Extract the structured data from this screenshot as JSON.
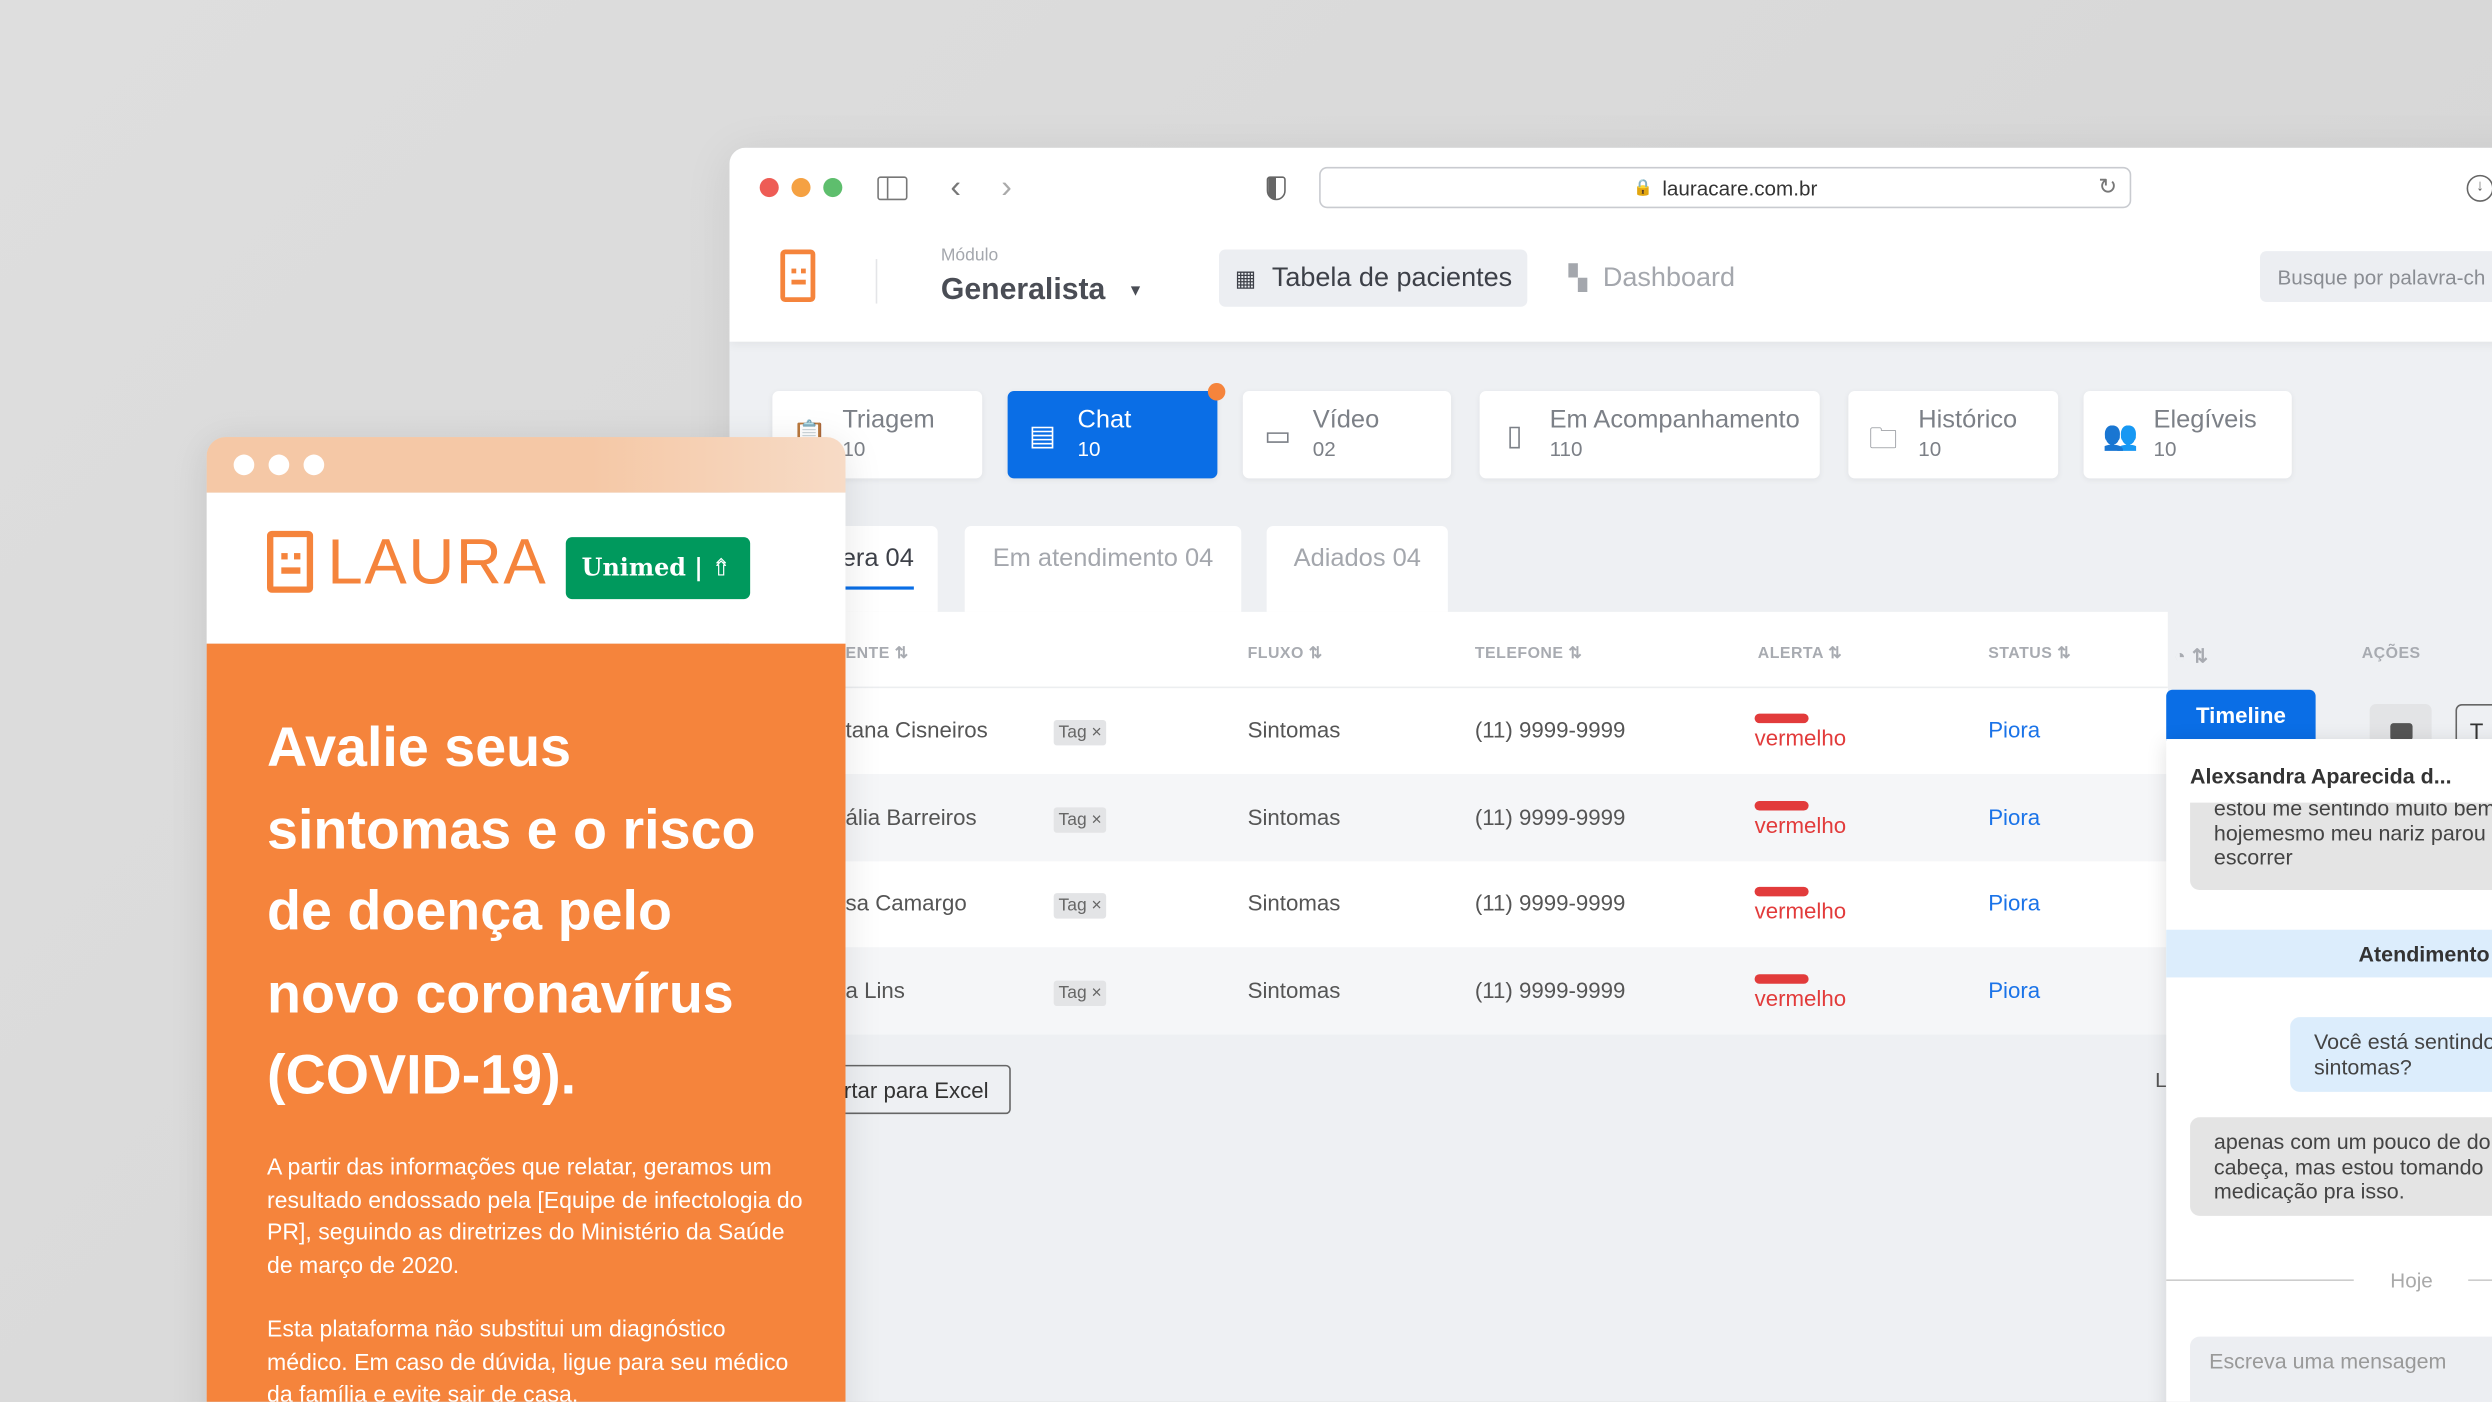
{
  "browser": {
    "url": "lauracare.com.br",
    "colors": {
      "close": "#ee5c55",
      "minimize": "#f5a142",
      "maximize": "#5ebe6d"
    }
  },
  "header": {
    "module_label": "Módulo",
    "module_value": "Generalista",
    "tabs": [
      {
        "label": "Tabela de pacientes",
        "active": true
      },
      {
        "label": "Dashboard",
        "active": false
      }
    ],
    "search_placeholder": "Busque por palavra-ch"
  },
  "categories": [
    {
      "label": "Triagem",
      "count": "10",
      "icon": "clipboard-icon"
    },
    {
      "label": "Chat",
      "count": "10",
      "icon": "chat-clipboard-icon",
      "active": true,
      "badge": true
    },
    {
      "label": "Vídeo",
      "count": "02",
      "icon": "video-icon"
    },
    {
      "label": "Em Acompanhamento",
      "count": "110",
      "icon": "laura-icon"
    },
    {
      "label": "Histórico",
      "count": "10",
      "icon": "folder-icon"
    },
    {
      "label": "Elegíveis",
      "count": "10",
      "icon": "users-icon"
    }
  ],
  "subtabs": [
    "era 04",
    "Em atendimento 04",
    "Adiados 04"
  ],
  "table": {
    "headers": {
      "paciente": "ENTE",
      "fluxo": "FLUXO",
      "telefone": "TELEFONE",
      "alerta": "ALERTA",
      "status": "STATUS",
      "acoes": "AÇÕES"
    },
    "rows": [
      {
        "name": "tana Cisneiros",
        "tag": "Tag",
        "fluxo": "Sintomas",
        "telefone": "(11) 9999-9999",
        "alerta": "vermelho",
        "status": "Piora"
      },
      {
        "name": "ália Barreiros",
        "tag": "Tag",
        "fluxo": "Sintomas",
        "telefone": "(11) 9999-9999",
        "alerta": "vermelho",
        "status": "Piora"
      },
      {
        "name": "sa Camargo",
        "tag": "Tag",
        "fluxo": "Sintomas",
        "telefone": "(11) 9999-9999",
        "alerta": "vermelho",
        "status": "Piora"
      },
      {
        "name": "a Lins",
        "tag": "Tag",
        "fluxo": "Sintomas",
        "telefone": "(11) 9999-9999",
        "alerta": "vermelho",
        "status": "Piora"
      }
    ],
    "export_label": "rtar para Excel",
    "partial_label": "L",
    "action_button_label": "T"
  },
  "chat": {
    "timeline_label": "Timeline",
    "patient_name": "Alexsandra Aparecida d...",
    "messages": [
      {
        "from": "patient",
        "text": "estou me sentindo muito bem hojemesmo meu nariz parou de escorrer"
      },
      {
        "from": "system",
        "text": "Atendimento"
      },
      {
        "from": "agent",
        "text": "Você está sentindo sintomas?"
      },
      {
        "from": "patient",
        "text": "apenas com um pouco de dor de cabeça, mas estou tomando medicação pra isso."
      }
    ],
    "divider": "Hoje",
    "input_placeholder": "Escreva uma mensagem"
  },
  "promo": {
    "brand": "LAURA",
    "partner": "Unimed",
    "headline": [
      "Avalie seus",
      "sintomas e o risco",
      "de doença pelo",
      "novo coronavírus",
      "(COVID-19)."
    ],
    "paragraph1": "A partir das informações que relatar, geramos um resultado endossado pela [Equipe de infectologia do PR], seguindo as diretrizes do Ministério da Saúde de março de 2020.",
    "paragraph2": "Esta plataforma não substitui um diagnóstico médico. Em caso de dúvida, ligue para seu médico da família e evite sair de casa.",
    "colors": {
      "orange": "#f5843c",
      "unimed_green": "#00995d"
    }
  },
  "colors": {
    "primary": "#0a6ee6",
    "alert_red": "#e23b3b",
    "status_blue": "#1a73e8"
  }
}
